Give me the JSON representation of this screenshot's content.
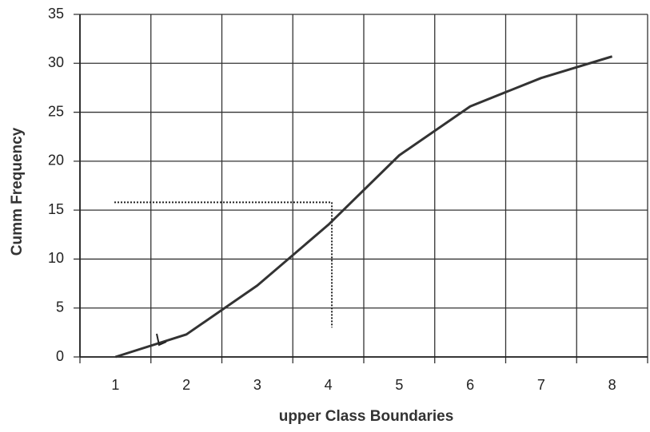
{
  "chart_data": {
    "type": "line",
    "xlabel": "upper Class Boundaries",
    "ylabel": "Cumm Frequency",
    "x": [
      1,
      2,
      3,
      4,
      5,
      6,
      7,
      8
    ],
    "series": [
      {
        "color": "#333333",
        "values": [
          0,
          2.3,
          7.3,
          13.5,
          20.6,
          25.6,
          28.5,
          30.7
        ]
      }
    ],
    "xlim": [
      0.5,
      8.5
    ],
    "xticks": [
      1,
      2,
      3,
      4,
      5,
      6,
      7,
      8
    ],
    "ylim": [
      0,
      35
    ],
    "yticks": [
      0,
      5,
      10,
      15,
      20,
      25,
      30,
      35
    ],
    "grid": true,
    "guide": {
      "x": 4.05,
      "y": 15.8,
      "y_end": 3
    }
  }
}
